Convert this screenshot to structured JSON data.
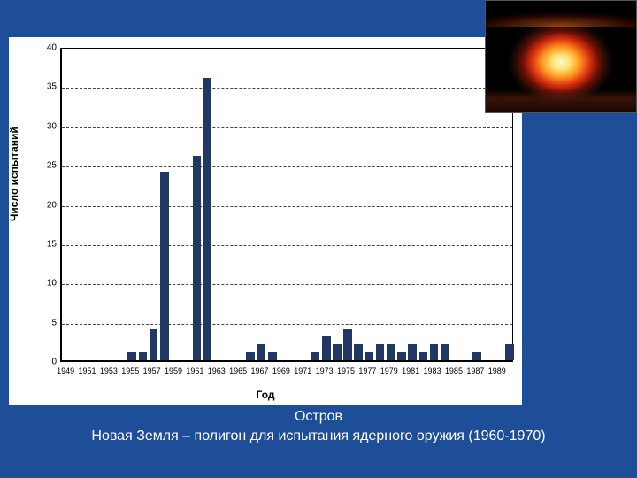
{
  "background_color": "#1f4e99",
  "chart": {
    "type": "bar",
    "ylabel": "Число испытаний",
    "xlabel": "Год",
    "ylim": [
      0,
      40
    ],
    "yticks": [
      0,
      5,
      10,
      15,
      20,
      25,
      30,
      35,
      40
    ],
    "xticks": [
      1949,
      1951,
      1953,
      1955,
      1957,
      1959,
      1961,
      1963,
      1965,
      1967,
      1969,
      1971,
      1973,
      1975,
      1977,
      1979,
      1981,
      1983,
      1985,
      1987,
      1989
    ],
    "years": [
      1949,
      1950,
      1951,
      1952,
      1953,
      1954,
      1955,
      1956,
      1957,
      1958,
      1959,
      1960,
      1961,
      1962,
      1963,
      1964,
      1965,
      1966,
      1967,
      1968,
      1969,
      1970,
      1971,
      1972,
      1973,
      1974,
      1975,
      1976,
      1977,
      1978,
      1979,
      1980,
      1981,
      1982,
      1983,
      1984,
      1985,
      1986,
      1987,
      1988,
      1989,
      1990
    ],
    "values": [
      0,
      0,
      0,
      0,
      0,
      0,
      1,
      1,
      4,
      24,
      0,
      0,
      26,
      36,
      0,
      0,
      0,
      1,
      2,
      1,
      0,
      0,
      0,
      1,
      3,
      2,
      4,
      2,
      1,
      2,
      2,
      1,
      2,
      1,
      2,
      2,
      0,
      0,
      1,
      0,
      0,
      2
    ],
    "bar_color": "#203864",
    "bar_width": 0.8,
    "background_color": "#ffffff",
    "grid_color": "#444444",
    "axis_color": "#000000",
    "ylabel_fontsize": 12,
    "xlabel_fontsize": 12,
    "tick_fontsize": 10
  },
  "caption": {
    "line1": "Остров",
    "line2": "Новая Земля – полигон для испытания ядерного оружия (1960-1970)",
    "color": "#ffffff",
    "fontsize": 16
  },
  "corner_image": {
    "description": "nuclear-explosion-photo",
    "width": 172,
    "height": 128
  }
}
